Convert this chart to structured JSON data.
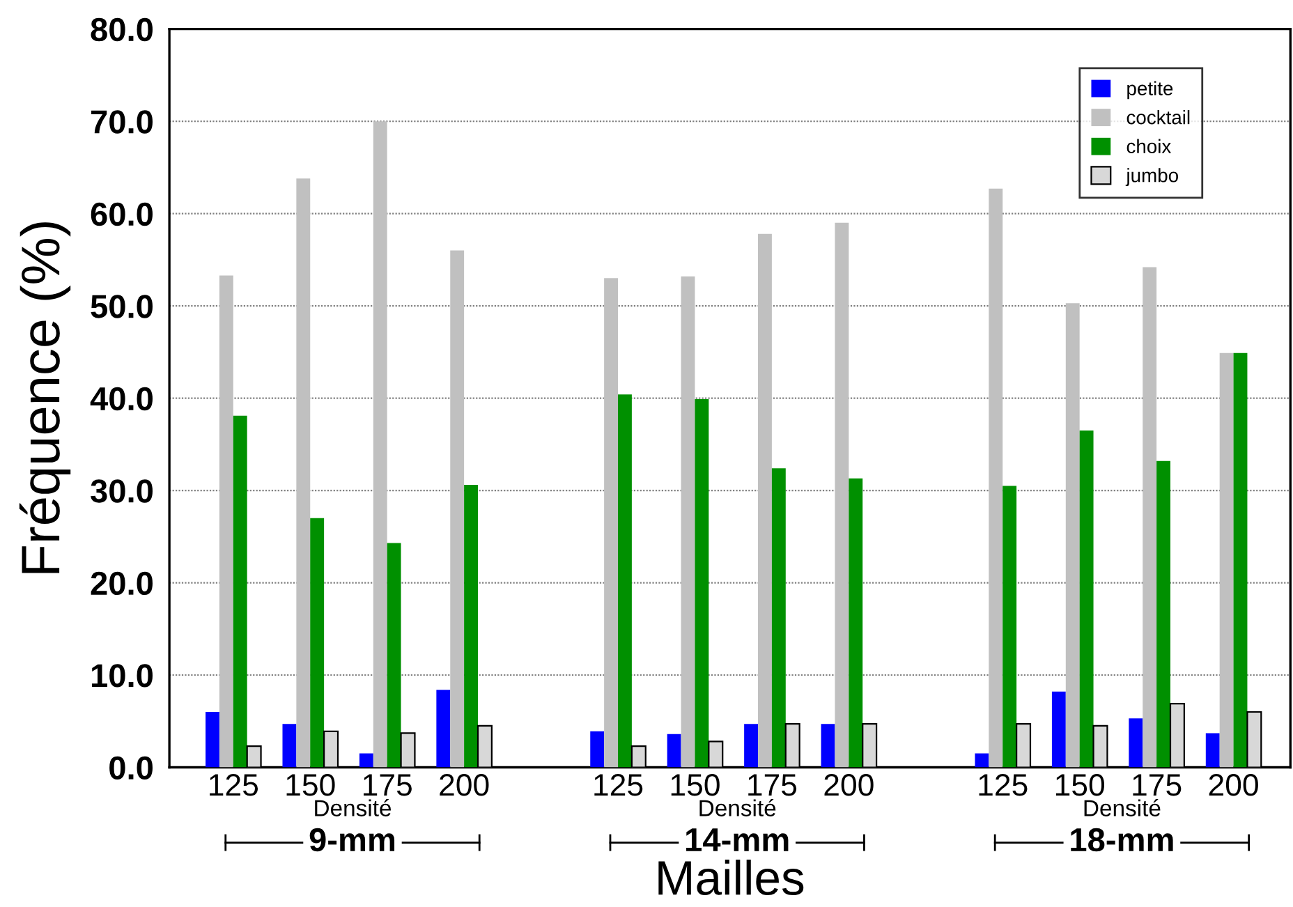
{
  "chart_data": {
    "type": "bar",
    "categories": [
      "125",
      "150",
      "175",
      "200",
      null,
      "125",
      "150",
      "175",
      "200",
      null,
      "125",
      "150",
      "175",
      "200"
    ],
    "series": [
      {
        "name": "petite",
        "color": "#0000ff",
        "values": [
          6.0,
          4.7,
          1.5,
          8.4,
          null,
          3.9,
          3.6,
          4.7,
          4.7,
          null,
          1.5,
          8.2,
          5.3,
          3.7
        ]
      },
      {
        "name": "cocktail",
        "color": "#c0c0c0",
        "values": [
          53.3,
          63.8,
          70.0,
          56.0,
          null,
          53.0,
          53.2,
          57.8,
          59.0,
          null,
          62.7,
          50.3,
          54.2,
          44.9
        ]
      },
      {
        "name": "choix",
        "color": "#009000",
        "values": [
          38.1,
          27.0,
          24.3,
          30.6,
          null,
          40.4,
          39.9,
          32.4,
          31.3,
          null,
          30.5,
          36.5,
          33.2,
          44.9
        ]
      },
      {
        "name": "jumbo",
        "color": "#d8d8d8",
        "values": [
          2.3,
          3.9,
          3.7,
          4.5,
          null,
          2.3,
          2.8,
          4.7,
          4.7,
          null,
          4.7,
          4.5,
          6.9,
          6.0
        ]
      }
    ],
    "ylabel": "Fréquence (%)",
    "xlabel": "Mailles",
    "annotations": [
      "Densité",
      "9-mm",
      "Densité",
      "14-mm",
      "Densité",
      "18-mm"
    ],
    "ylim": [
      0,
      80
    ],
    "yticks": [
      {
        "value": 0,
        "label": "0.0"
      },
      {
        "value": 10,
        "label": "10.0"
      },
      {
        "value": 20,
        "label": "20.0"
      },
      {
        "value": 30,
        "label": "30.0"
      },
      {
        "value": 40,
        "label": "40.0"
      },
      {
        "value": 50,
        "label": "50.0"
      },
      {
        "value": 60,
        "label": "60.0"
      },
      {
        "value": 70,
        "label": "70.0"
      },
      {
        "value": 80,
        "label": "80.0"
      }
    ],
    "grid": "y",
    "legend": "top right"
  }
}
